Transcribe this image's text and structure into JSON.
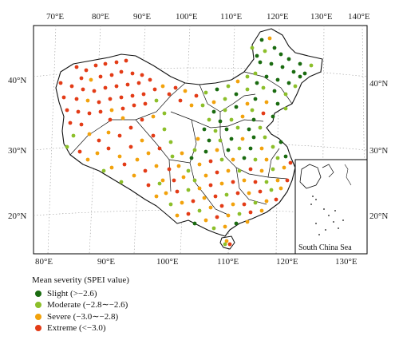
{
  "map": {
    "lon_ticks_top": [
      "70°E",
      "80°E",
      "90°E",
      "100°E",
      "110°E",
      "120°E",
      "130°E",
      "140°E"
    ],
    "lon_ticks_bottom": [
      "80°E",
      "90°E",
      "100°E",
      "110°E",
      "120°E",
      "130°E"
    ],
    "lat_ticks_left": [
      "40°N",
      "30°N",
      "20°N"
    ],
    "lat_ticks_right": [
      "40°N",
      "30°N",
      "20°N"
    ],
    "inset_label": "South China Sea"
  },
  "legend": {
    "title": "Mean severity (SPEI value)",
    "items": [
      {
        "label": "Slight (>−2.6)",
        "color": "#1a6b10"
      },
      {
        "label": "Moderate (−2.8∼−2.6)",
        "color": "#8cbf2a"
      },
      {
        "label": "Severe (−3.0∼−2.8)",
        "color": "#f2a20c"
      },
      {
        "label": "Extreme (<−3.0)",
        "color": "#e33b16"
      }
    ]
  },
  "colors": {
    "slight": "#1a6b10",
    "moderate": "#8cbf2a",
    "severe": "#f2a20c",
    "extreme": "#e33b16"
  }
}
